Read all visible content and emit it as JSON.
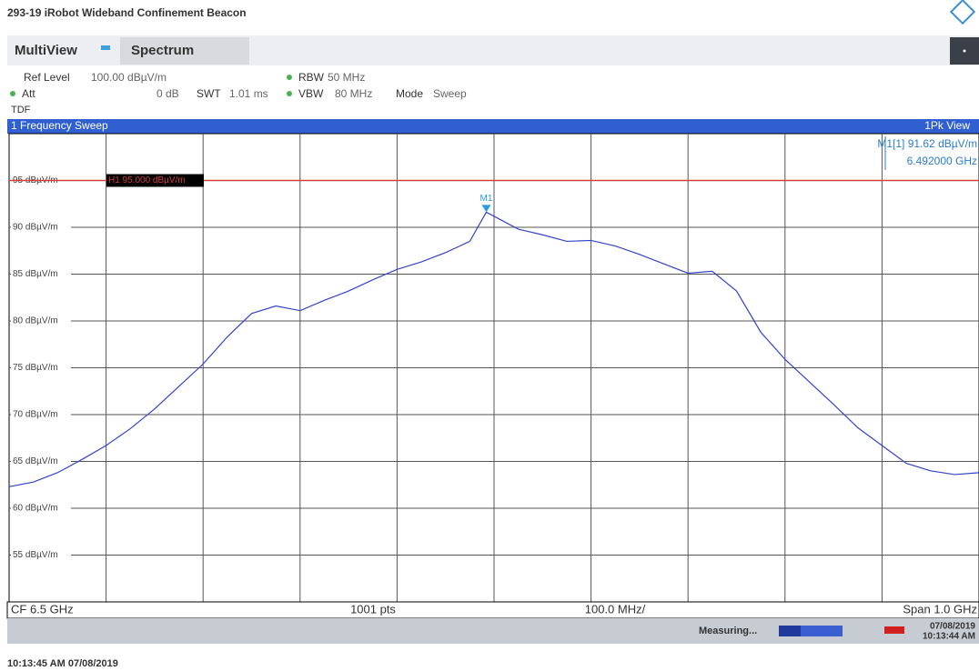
{
  "ui": {
    "title": "293-19 iRobot Wideband Confinement Beacon",
    "tabs": [
      "MultiView",
      "Spectrum"
    ],
    "settings": {
      "ref_level_label": "Ref Level",
      "ref_level": "100.00 dBµV/m",
      "rbw_label": "RBW",
      "rbw": "50 MHz",
      "att_label": "Att",
      "att": "0 dB",
      "swt_label": "SWT",
      "swt": "1.01 ms",
      "vbw_label": "VBW",
      "vbw": "80 MHz",
      "mode_label": "Mode",
      "mode": "Sweep",
      "tdf": "TDF"
    },
    "window": {
      "title": "1 Frequency Sweep",
      "view": "1Pk View"
    },
    "footer_bar": {
      "cf": "CF 6.5 GHz",
      "pts": "1001 pts",
      "div": "100.0 MHz/",
      "span": "Span 1.0 GHz"
    },
    "status": {
      "state": "Measuring...",
      "date": "07/08/2019",
      "time": "10:13:44 AM"
    },
    "timestamp": "10:13:45 AM 07/08/2019"
  },
  "chart_data": {
    "type": "line",
    "x": [
      6.0,
      6.025,
      6.05,
      6.075,
      6.1,
      6.125,
      6.15,
      6.175,
      6.2,
      6.225,
      6.25,
      6.275,
      6.3,
      6.325,
      6.35,
      6.375,
      6.4,
      6.425,
      6.45,
      6.475,
      6.492,
      6.525,
      6.55,
      6.575,
      6.6,
      6.625,
      6.65,
      6.675,
      6.7,
      6.725,
      6.75,
      6.775,
      6.8,
      6.825,
      6.85,
      6.875,
      6.9,
      6.925,
      6.95,
      6.975,
      7.0
    ],
    "series": [
      {
        "color": "#3344cc",
        "values": [
          62.3,
          62.8,
          63.8,
          65.2,
          66.7,
          68.5,
          70.6,
          73.0,
          75.4,
          78.3,
          80.8,
          81.6,
          81.1,
          82.2,
          83.2,
          84.4,
          85.5,
          86.3,
          87.3,
          88.5,
          91.62,
          89.8,
          89.2,
          88.5,
          88.6,
          88.0,
          87.1,
          86.1,
          85.1,
          85.3,
          83.2,
          78.8,
          75.9,
          73.5,
          71.1,
          68.6,
          66.7,
          64.8,
          64.0,
          63.6,
          63.8
        ]
      }
    ],
    "xlim": [
      6.0,
      7.0
    ],
    "xticks": [
      6.1,
      6.2,
      6.3,
      6.4,
      6.5,
      6.6,
      6.7,
      6.8,
      6.9
    ],
    "ylim": [
      50,
      100
    ],
    "yticks": [
      {
        "value": 95,
        "label": "95 dBµV/m"
      },
      {
        "value": 90,
        "label": "90 dBµV/m"
      },
      {
        "value": 85,
        "label": "85 dBµV/m"
      },
      {
        "value": 80,
        "label": "80 dBµV/m"
      },
      {
        "value": 75,
        "label": "75 dBµV/m"
      },
      {
        "value": 70,
        "label": "70 dBµV/m"
      },
      {
        "value": 65,
        "label": "65 dBµV/m"
      },
      {
        "value": 60,
        "label": "60 dBµV/m"
      },
      {
        "value": 55,
        "label": "55 dBµV/m"
      }
    ],
    "grid": true,
    "ref_line": {
      "value": 95,
      "label": "H1 95.000 dBµV/m",
      "color": "#d04040"
    },
    "marker": {
      "name": "M1",
      "x": 6.492,
      "y": 91.62,
      "readout": "M1[1] 91.62 dBµV/m",
      "readout_x": "6.492000 GHz"
    }
  }
}
